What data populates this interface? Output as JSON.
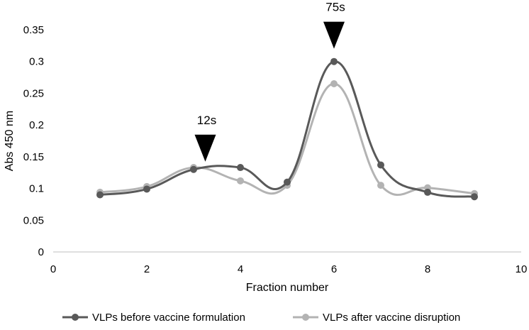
{
  "chart_data": {
    "type": "line",
    "xlabel": "Fraction number",
    "ylabel": "Abs 450 nm",
    "xlim": [
      0,
      10
    ],
    "ylim": [
      0,
      0.35
    ],
    "xticks": [
      "0",
      "2",
      "4",
      "6",
      "8",
      "10"
    ],
    "yticks": [
      "0",
      "0.05",
      "0.1",
      "0.15",
      "0.2",
      "0.25",
      "0.3",
      "0.35"
    ],
    "grid": false,
    "legend_position": "bottom",
    "smoothed": true,
    "x": [
      1,
      2,
      3,
      4,
      5,
      6,
      7,
      8,
      9
    ],
    "series": [
      {
        "name": "VLPs before vaccine formulation",
        "color": "#595959",
        "values": [
          0.09,
          0.099,
          0.13,
          0.133,
          0.11,
          0.3,
          0.137,
          0.094,
          0.087
        ]
      },
      {
        "name": "VLPs after vaccine disruption",
        "color": "#b3b3b3",
        "values": [
          0.094,
          0.103,
          0.133,
          0.112,
          0.105,
          0.265,
          0.105,
          0.101,
          0.092
        ]
      }
    ],
    "annotations": [
      {
        "label": "12s",
        "x": 3.25,
        "y": 0.14,
        "marker": "down-triangle"
      },
      {
        "label": "75s",
        "x": 6.0,
        "y": 0.318,
        "marker": "down-triangle"
      }
    ]
  }
}
